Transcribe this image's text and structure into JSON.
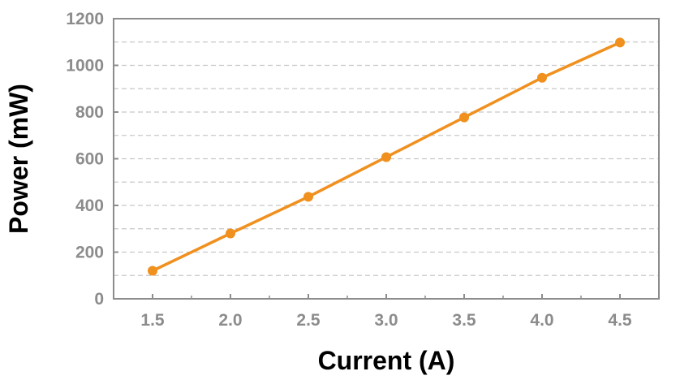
{
  "chart_data": {
    "type": "line",
    "xlabel": "Current (A)",
    "ylabel": "Power (mW)",
    "xlim": [
      1.25,
      4.75
    ],
    "ylim": [
      0,
      1200
    ],
    "x_ticks": [
      "1.5",
      "2.0",
      "2.5",
      "3.0",
      "3.5",
      "4.0",
      "4.5"
    ],
    "y_ticks": [
      "0",
      "200",
      "400",
      "600",
      "800",
      "1000",
      "1200"
    ],
    "grid": "dashed horizontal lines every 100",
    "series": [
      {
        "x": [
          1.5,
          2.0,
          2.5,
          3.0,
          3.5,
          4.0,
          4.5
        ],
        "y": [
          120,
          280,
          437,
          607,
          777,
          947,
          1098
        ],
        "color": "#f0901e"
      }
    ],
    "colors": {
      "frame": "#8c8c8c",
      "grid": "#c8c8c8",
      "ticks": "#8c8c8c"
    }
  }
}
